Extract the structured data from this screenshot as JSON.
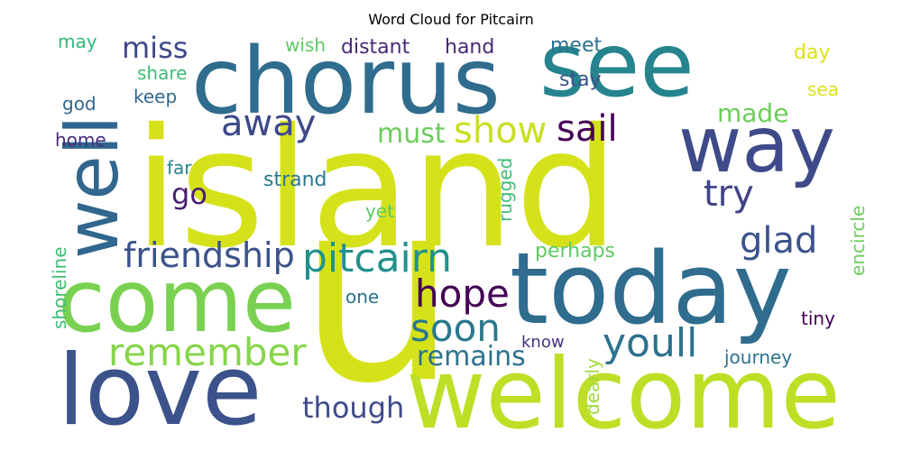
{
  "chart_data": {
    "type": "wordcloud",
    "title": "Word Cloud for Pitcairn",
    "words": [
      {
        "text": "island",
        "color": "#d5e21a"
      },
      {
        "text": "u",
        "color": "#d5e21a"
      },
      {
        "text": "chorus",
        "color": "#2f6c8e"
      },
      {
        "text": "see",
        "color": "#25848e"
      },
      {
        "text": "today",
        "color": "#2f6c8e"
      },
      {
        "text": "welcome",
        "color": "#bddf26"
      },
      {
        "text": "love",
        "color": "#3b528b"
      },
      {
        "text": "come",
        "color": "#7ad151"
      },
      {
        "text": "well",
        "color": "#31678e"
      },
      {
        "text": "way",
        "color": "#3e4a89"
      },
      {
        "text": "pitcairn",
        "color": "#21918c"
      },
      {
        "text": "remember",
        "color": "#86d549"
      },
      {
        "text": "youll",
        "color": "#2c728e"
      },
      {
        "text": "friendship",
        "color": "#3b528b"
      },
      {
        "text": "away",
        "color": "#3e4989"
      },
      {
        "text": "show",
        "color": "#c8e020"
      },
      {
        "text": "sail",
        "color": "#440154"
      },
      {
        "text": "try",
        "color": "#414487"
      },
      {
        "text": "glad",
        "color": "#3b528b"
      },
      {
        "text": "hope",
        "color": "#440154"
      },
      {
        "text": "soon",
        "color": "#2a788e"
      },
      {
        "text": "remains",
        "color": "#2c728e"
      },
      {
        "text": "though",
        "color": "#3e4a89"
      },
      {
        "text": "miss",
        "color": "#3e4989"
      },
      {
        "text": "must",
        "color": "#6ccd5a"
      },
      {
        "text": "made",
        "color": "#6ccd5a"
      },
      {
        "text": "go",
        "color": "#481f70"
      },
      {
        "text": "distant",
        "color": "#482878"
      },
      {
        "text": "hand",
        "color": "#482878"
      },
      {
        "text": "wish",
        "color": "#5ec962"
      },
      {
        "text": "meet",
        "color": "#2c728e"
      },
      {
        "text": "may",
        "color": "#35b779"
      },
      {
        "text": "share",
        "color": "#3fbc73"
      },
      {
        "text": "keep",
        "color": "#31688e"
      },
      {
        "text": "god",
        "color": "#31688e"
      },
      {
        "text": "home",
        "color": "#472d7b"
      },
      {
        "text": "far",
        "color": "#26828e"
      },
      {
        "text": "strand",
        "color": "#2a788e"
      },
      {
        "text": "stay",
        "color": "#3b528b"
      },
      {
        "text": "day",
        "color": "#dde318"
      },
      {
        "text": "sea",
        "color": "#dde318"
      },
      {
        "text": "yet",
        "color": "#5ec962"
      },
      {
        "text": "rugged",
        "color": "#3fbc73"
      },
      {
        "text": "perhaps",
        "color": "#5ec962"
      },
      {
        "text": "one",
        "color": "#2c728e"
      },
      {
        "text": "shoreline",
        "color": "#3fbc73"
      },
      {
        "text": "encircle",
        "color": "#6ccd5a"
      },
      {
        "text": "tiny",
        "color": "#440154"
      },
      {
        "text": "know",
        "color": "#46337e"
      },
      {
        "text": "journey",
        "color": "#2c728e"
      },
      {
        "text": "dearly",
        "color": "#a0da39"
      }
    ]
  }
}
